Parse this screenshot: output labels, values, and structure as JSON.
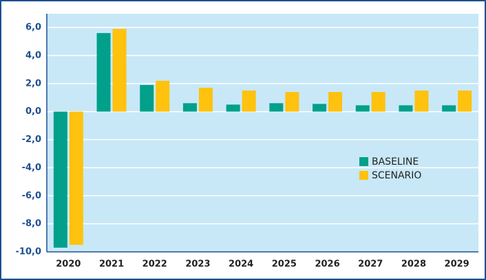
{
  "chart_data": {
    "type": "bar",
    "categories": [
      "2020",
      "2021",
      "2022",
      "2023",
      "2024",
      "2025",
      "2026",
      "2027",
      "2028",
      "2029"
    ],
    "series": [
      {
        "name": "BASELINE",
        "color": "#00a08a",
        "values": [
          -9.7,
          5.6,
          1.9,
          0.6,
          0.5,
          0.6,
          0.55,
          0.45,
          0.45,
          0.45
        ]
      },
      {
        "name": "SCENARIO",
        "color": "#ffc20e",
        "values": [
          -9.5,
          5.9,
          2.2,
          1.7,
          1.5,
          1.4,
          1.4,
          1.4,
          1.5,
          1.5
        ]
      }
    ],
    "ylim": [
      -10,
      6
    ],
    "yticks": [
      {
        "value": -10,
        "label": "-10,0"
      },
      {
        "value": -8,
        "label": "-8,0"
      },
      {
        "value": -6,
        "label": "-6,0"
      },
      {
        "value": -4,
        "label": "-4,0"
      },
      {
        "value": -2,
        "label": "-2,0"
      },
      {
        "value": 0,
        "label": "0,0"
      },
      {
        "value": 2,
        "label": "2,0"
      },
      {
        "value": 4,
        "label": "4,0"
      },
      {
        "value": 6,
        "label": "6,0"
      }
    ],
    "grid": true,
    "legend": "right"
  }
}
